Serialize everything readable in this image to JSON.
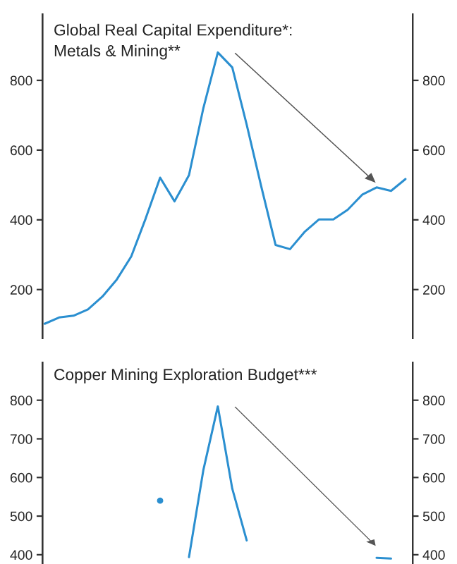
{
  "chart_data": [
    {
      "type": "line",
      "title": "Global Real Capital Expenditure*:\nMetals & Mining**",
      "categories": [
        null,
        null,
        null,
        null,
        null,
        null,
        null,
        null,
        null,
        null,
        null,
        null,
        null,
        null,
        null,
        null,
        null,
        null,
        null,
        null,
        null,
        null,
        null,
        null,
        null,
        null
      ],
      "series": [
        {
          "color": "#2b8fd0",
          "values": [
            102,
            120,
            125,
            143,
            180,
            229,
            295,
            404,
            521,
            453,
            528,
            721,
            880,
            837,
            673,
            497,
            328,
            316,
            365,
            401,
            401,
            429,
            472,
            493,
            483,
            517
          ]
        }
      ],
      "ylim": [
        60,
        990
      ],
      "yticks": [
        200,
        400,
        600,
        800
      ],
      "y2lim": [
        60,
        990
      ],
      "y2ticks": [
        200,
        400,
        600,
        800
      ],
      "tick_labels": "y",
      "grid": false,
      "legend": false
    },
    {
      "type": "line",
      "title": "Copper Mining Exploration Budget***",
      "categories": [
        null,
        null,
        null,
        null,
        null,
        null,
        null,
        null,
        null,
        null,
        null,
        null,
        null,
        null,
        null,
        null,
        null,
        null,
        null,
        null,
        null,
        null,
        null,
        null,
        null,
        null
      ],
      "series": [
        {
          "color": "#2b8fd0",
          "values": [
            null,
            null,
            null,
            null,
            null,
            null,
            null,
            null,
            540,
            null,
            394,
            620,
            784,
            571,
            437,
            null,
            null,
            null,
            null,
            null,
            null,
            null,
            null,
            392,
            390,
            null
          ]
        }
      ],
      "ylim": [
        376,
        898
      ],
      "yticks": [
        400,
        500,
        600,
        700,
        800
      ],
      "y2lim": [
        376,
        898
      ],
      "y2ticks": [
        400,
        500,
        600,
        700,
        800
      ],
      "tick_labels": "y",
      "grid": false,
      "legend": false
    }
  ]
}
